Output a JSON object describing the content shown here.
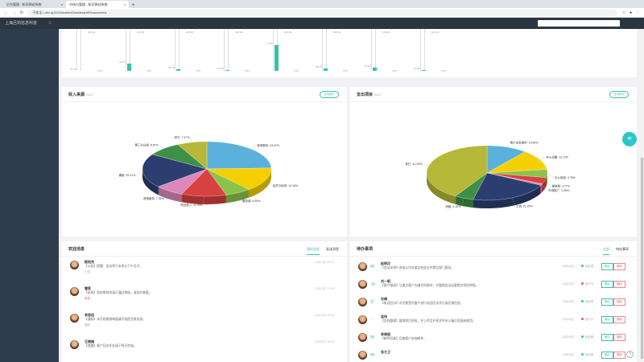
{
  "browser": {
    "tabs": [
      {
        "label": "后台管理 - 知识驿站系统"
      },
      {
        "label": "市场与管理 - 知识驿站系统"
      }
    ],
    "url": "dev.dj:2020/Admin/Dashboard/Financeview",
    "url_prefix": "不安全"
  },
  "header": {
    "title": "上海吕钧信息科技",
    "menu": "☰"
  },
  "strip": {
    "charts": [
      {
        "top": "200.00",
        "value": "65.00",
        "fill": 0
      },
      {
        "top": "100.00",
        "value": "22.00",
        "fill": 18
      },
      {
        "top": "200.00",
        "value": "25.00",
        "fill": 5
      },
      {
        "top": "100.00",
        "value": "70.00",
        "fill": 3
      },
      {
        "top": "100.00",
        "value": "72.00",
        "fill": 65
      },
      {
        "top": "500.00",
        "value": "30.00",
        "fill": 6
      },
      {
        "top": "100.00",
        "value": "55.00",
        "fill": 8
      },
      {
        "top": "100.00",
        "value": "10.00",
        "fill": 2
      }
    ],
    "zero": "0.00"
  },
  "income": {
    "title": "收入来源",
    "subtitle": "Top 8",
    "button": "当月统计"
  },
  "expense": {
    "title": "支出项目",
    "subtitle": "Top 8",
    "button": "当月统计"
  },
  "chart_data": [
    {
      "type": "pie",
      "title": "收入来源",
      "slices": [
        {
          "label": "咨询服务",
          "value": 24.47,
          "color": "#5ab1db"
        },
        {
          "label": "会员与培训",
          "value": 14.16,
          "color": "#f5d000"
        },
        {
          "label": "服务费",
          "value": 6.5,
          "color": "#8bc34a"
        },
        {
          "label": "项目收入",
          "value": 11.3,
          "color": "#d94040"
        },
        {
          "label": "其他服务",
          "value": 7.32,
          "color": "#dd88bb"
        },
        {
          "label": "课程",
          "value": 20.21,
          "color": "#2c3e70"
        },
        {
          "label": "第三方分成",
          "value": 8.57,
          "color": "#3f8f46"
        },
        {
          "label": "其它",
          "value": 7.47,
          "color": "#b5b838"
        }
      ]
    },
    {
      "type": "pie",
      "title": "支出项目",
      "slices": [
        {
          "label": "客户关系维护",
          "value": 10.84,
          "color": "#5ab1db"
        },
        {
          "label": "办公设备",
          "value": 12.11,
          "color": "#f5d000"
        },
        {
          "label": "办公用品",
          "value": 4.78,
          "color": "#8bc34a"
        },
        {
          "label": "差旅费",
          "value": 3.77,
          "color": "#d94040"
        },
        {
          "label": "市场推广",
          "value": 1.0,
          "color": "#dd88bb"
        },
        {
          "label": "工资",
          "value": 21.2,
          "color": "#2c3e70"
        },
        {
          "label": "房租",
          "value": 5.1,
          "color": "#3f8f46"
        },
        {
          "label": "其它",
          "value": 41.2,
          "color": "#b5b838"
        }
      ]
    }
  ],
  "messages": {
    "title": "欢迎消息",
    "tabs": [
      "我的消息",
      "发送消息"
    ],
    "items": [
      {
        "name": "欧阳克",
        "text": "【公告】提醒：会议将于本周五下午召开。",
        "tag": "公告",
        "time": "12月14日 09:20"
      },
      {
        "name": "雪莉",
        "text": "【系统】您的审批申请已通过审核，请及时查看。",
        "tag": "紧急",
        "time": "12月13日 17:08"
      },
      {
        "name": "李思佳",
        "text": "【通知】本月的报销单据请尽快提交财务部。",
        "tag": "通知",
        "time": "12月12日 14:05"
      },
      {
        "name": "王晓梅",
        "text": "【提醒】客户回访任务请于明天完成。",
        "tag": "",
        "time": "12月11日 10:30"
      }
    ]
  },
  "tasks": {
    "title": "待办事项",
    "tabs": [
      "全部",
      "待办事项"
    ],
    "items": [
      {
        "name": "赵明月",
        "text": "【会议安排】参加公司年度总结会议并提交部门报告。",
        "date": "12月14日",
        "status": "待处理",
        "dot": "#3dbfa8"
      },
      {
        "name": "刘一帆",
        "text": "【客户跟进】与重点客户沟通合同细节，并整理会议纪要提交领导审批。",
        "date": "12月13日",
        "status": "进行中",
        "dot": "#e05577"
      },
      {
        "name": "孙倩",
        "text": "【电话回访】对近期签约客户进行电话回访并记录反馈信息。",
        "date": "12月12日",
        "status": "待处理",
        "dot": "#3dbfa8"
      },
      {
        "name": "吴伟",
        "text": "【文档整理】整理项目资料，并上传至共享文件夹以备后续查阅使用。",
        "date": "12月11日",
        "status": "进行中",
        "dot": "#e05577"
      },
      {
        "name": "李晓丽",
        "text": "【邮件回复】回复客户咨询邮件。",
        "date": "12月10日",
        "status": "待处理",
        "dot": "#3dbfa8"
      },
      {
        "name": "张大卫",
        "text": "",
        "date": "12月09日",
        "status": "待处理",
        "dot": "#3dbfa8"
      }
    ],
    "done": "确认",
    "del": "删除"
  },
  "fab": "✉",
  "help": "?"
}
